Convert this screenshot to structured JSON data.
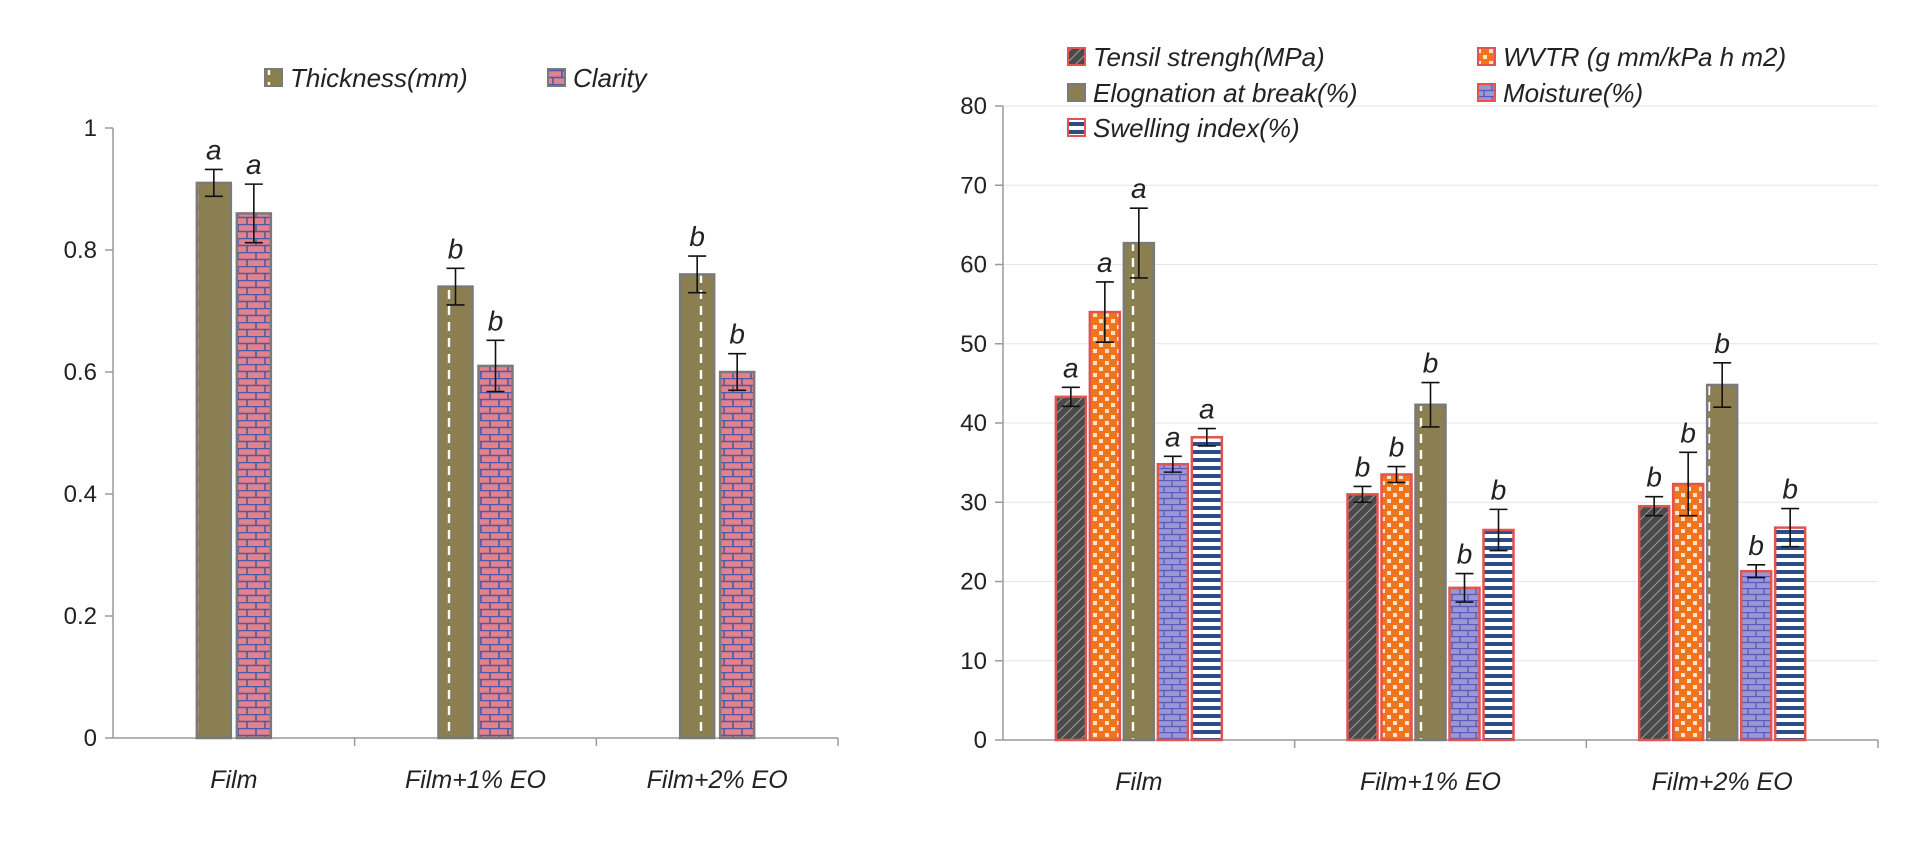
{
  "colors": {
    "olive": "#8b7f52",
    "brick": "#e3828c",
    "brick_mortar": "#4a5aa8",
    "tensile": "#4a4a4a",
    "wvtr": "#f0731e",
    "moisture": "#9a97d6",
    "swelling_stripe": "#2b4e86",
    "bar_border_red": "#e0554f",
    "bar_border_grey": "#7a7a7a",
    "gridline": "#e6e6e6"
  },
  "chart_data": [
    {
      "type": "bar",
      "categories": [
        "Film",
        "Film+1% EO",
        "Film+2% EO"
      ],
      "ylim": [
        0,
        1
      ],
      "yticks": [
        "0",
        "0.2",
        "0.4",
        "0.6",
        "0.8",
        "1"
      ],
      "grid": false,
      "legend_position": "top",
      "series": [
        {
          "name": "Thickness(mm)",
          "values": [
            0.91,
            0.74,
            0.76
          ],
          "errors": [
            0.022,
            0.03,
            0.03
          ],
          "letters": [
            "a",
            "b",
            "b"
          ],
          "pattern": "olive-dash",
          "icon": "olive-dash-swatch-icon"
        },
        {
          "name": "Clarity",
          "values": [
            0.86,
            0.61,
            0.6
          ],
          "errors": [
            0.048,
            0.042,
            0.03
          ],
          "letters": [
            "a",
            "b",
            "b"
          ],
          "pattern": "brick",
          "icon": "brick-swatch-icon"
        }
      ]
    },
    {
      "type": "bar",
      "categories": [
        "Film",
        "Film+1% EO",
        "Film+2% EO"
      ],
      "ylim": [
        0,
        80
      ],
      "yticks": [
        "0",
        "10",
        "20",
        "30",
        "40",
        "50",
        "60",
        "70",
        "80"
      ],
      "grid": true,
      "legend_position": "top",
      "series": [
        {
          "name": "Tensil strengh(MPa)",
          "values": [
            43.3,
            31.0,
            29.5
          ],
          "errors": [
            1.2,
            1.0,
            1.2
          ],
          "letters": [
            "a",
            "b",
            "b"
          ],
          "pattern": "tensile",
          "icon": "tensile-swatch-icon"
        },
        {
          "name": "WVTR (g mm/kPa h m2)",
          "values": [
            54.0,
            33.5,
            32.3
          ],
          "errors": [
            3.8,
            1.0,
            4.0
          ],
          "letters": [
            "a",
            "b",
            "b"
          ],
          "pattern": "checker",
          "icon": "checker-swatch-icon"
        },
        {
          "name": "Elognation at break(%)",
          "values": [
            62.7,
            42.3,
            44.8
          ],
          "errors": [
            4.4,
            2.8,
            2.8
          ],
          "letters": [
            "a",
            "b",
            "b"
          ],
          "pattern": "olive-dash",
          "icon": "olive-dash-swatch-icon"
        },
        {
          "name": "Moisture(%)",
          "values": [
            34.8,
            19.2,
            21.3
          ],
          "errors": [
            1.0,
            1.8,
            0.8
          ],
          "letters": [
            "a",
            "b",
            "b"
          ],
          "pattern": "moisture",
          "icon": "moisture-swatch-icon"
        },
        {
          "name": "Swelling index(%)",
          "values": [
            38.2,
            26.5,
            26.8
          ],
          "errors": [
            1.1,
            2.6,
            2.4
          ],
          "letters": [
            "a",
            "b",
            "b"
          ],
          "pattern": "stripes",
          "icon": "stripes-swatch-icon"
        }
      ]
    }
  ]
}
